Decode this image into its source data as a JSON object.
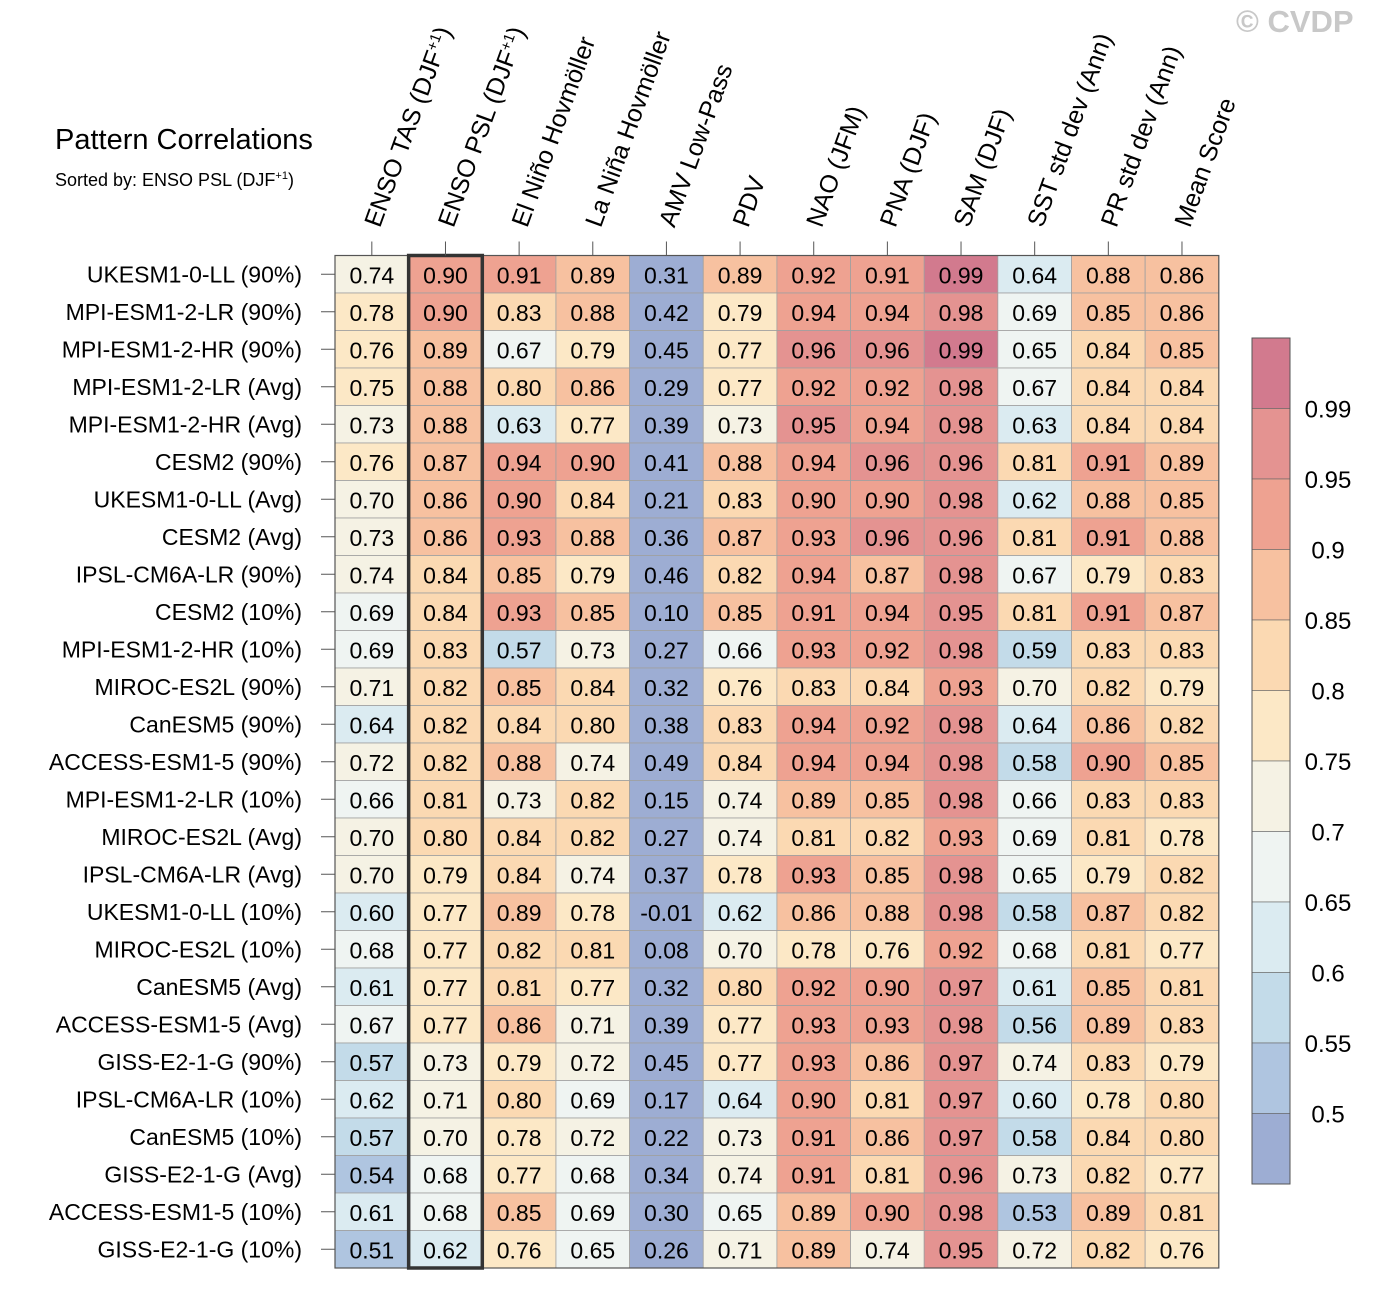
{
  "watermark": "© CVDP",
  "chart_data": {
    "type": "heatmap",
    "title": "Pattern Correlations",
    "subtitle_prefix": "Sorted by: ENSO PSL (DJF",
    "subtitle_sup": "+1",
    "subtitle_suffix": ")",
    "sorted_by_column": 1,
    "columns": [
      {
        "label": "ENSO TAS (DJF",
        "sup": "+1",
        "tail": ")"
      },
      {
        "label": "ENSO PSL (DJF",
        "sup": "+1",
        "tail": ")"
      },
      {
        "label": "El Niño Hovmöller",
        "sup": "",
        "tail": ""
      },
      {
        "label": "La Niña Hovmöller",
        "sup": "",
        "tail": ""
      },
      {
        "label": "AMV Low-Pass",
        "sup": "",
        "tail": ""
      },
      {
        "label": "PDV",
        "sup": "",
        "tail": ""
      },
      {
        "label": "NAO (JFM)",
        "sup": "",
        "tail": ""
      },
      {
        "label": "PNA (DJF)",
        "sup": "",
        "tail": ""
      },
      {
        "label": "SAM (DJF)",
        "sup": "",
        "tail": ""
      },
      {
        "label": "SST std dev (Ann)",
        "sup": "",
        "tail": ""
      },
      {
        "label": "PR std dev (Ann)",
        "sup": "",
        "tail": ""
      },
      {
        "label": "Mean Score",
        "sup": "",
        "tail": ""
      }
    ],
    "rows": [
      {
        "name": "UKESM1-0-LL (90%)",
        "values": [
          "0.74",
          "0.90",
          "0.91",
          "0.89",
          "0.31",
          "0.89",
          "0.92",
          "0.91",
          "0.99",
          "0.64",
          "0.88",
          "0.86"
        ]
      },
      {
        "name": "MPI-ESM1-2-LR (90%)",
        "values": [
          "0.78",
          "0.90",
          "0.83",
          "0.88",
          "0.42",
          "0.79",
          "0.94",
          "0.94",
          "0.98",
          "0.69",
          "0.85",
          "0.86"
        ]
      },
      {
        "name": "MPI-ESM1-2-HR (90%)",
        "values": [
          "0.76",
          "0.89",
          "0.67",
          "0.79",
          "0.45",
          "0.77",
          "0.96",
          "0.96",
          "0.99",
          "0.65",
          "0.84",
          "0.85"
        ]
      },
      {
        "name": "MPI-ESM1-2-LR (Avg)",
        "values": [
          "0.75",
          "0.88",
          "0.80",
          "0.86",
          "0.29",
          "0.77",
          "0.92",
          "0.92",
          "0.98",
          "0.67",
          "0.84",
          "0.84"
        ]
      },
      {
        "name": "MPI-ESM1-2-HR (Avg)",
        "values": [
          "0.73",
          "0.88",
          "0.63",
          "0.77",
          "0.39",
          "0.73",
          "0.95",
          "0.94",
          "0.98",
          "0.63",
          "0.84",
          "0.84"
        ]
      },
      {
        "name": "CESM2 (90%)",
        "values": [
          "0.76",
          "0.87",
          "0.94",
          "0.90",
          "0.41",
          "0.88",
          "0.94",
          "0.96",
          "0.96",
          "0.81",
          "0.91",
          "0.89"
        ]
      },
      {
        "name": "UKESM1-0-LL (Avg)",
        "values": [
          "0.70",
          "0.86",
          "0.90",
          "0.84",
          "0.21",
          "0.83",
          "0.90",
          "0.90",
          "0.98",
          "0.62",
          "0.88",
          "0.85"
        ]
      },
      {
        "name": "CESM2 (Avg)",
        "values": [
          "0.73",
          "0.86",
          "0.93",
          "0.88",
          "0.36",
          "0.87",
          "0.93",
          "0.96",
          "0.96",
          "0.81",
          "0.91",
          "0.88"
        ]
      },
      {
        "name": "IPSL-CM6A-LR (90%)",
        "values": [
          "0.74",
          "0.84",
          "0.85",
          "0.79",
          "0.46",
          "0.82",
          "0.94",
          "0.87",
          "0.98",
          "0.67",
          "0.79",
          "0.83"
        ]
      },
      {
        "name": "CESM2 (10%)",
        "values": [
          "0.69",
          "0.84",
          "0.93",
          "0.85",
          "0.10",
          "0.85",
          "0.91",
          "0.94",
          "0.95",
          "0.81",
          "0.91",
          "0.87"
        ]
      },
      {
        "name": "MPI-ESM1-2-HR (10%)",
        "values": [
          "0.69",
          "0.83",
          "0.57",
          "0.73",
          "0.27",
          "0.66",
          "0.93",
          "0.92",
          "0.98",
          "0.59",
          "0.83",
          "0.83"
        ]
      },
      {
        "name": "MIROC-ES2L (90%)",
        "values": [
          "0.71",
          "0.82",
          "0.85",
          "0.84",
          "0.32",
          "0.76",
          "0.83",
          "0.84",
          "0.93",
          "0.70",
          "0.82",
          "0.79"
        ]
      },
      {
        "name": "CanESM5 (90%)",
        "values": [
          "0.64",
          "0.82",
          "0.84",
          "0.80",
          "0.38",
          "0.83",
          "0.94",
          "0.92",
          "0.98",
          "0.64",
          "0.86",
          "0.82"
        ]
      },
      {
        "name": "ACCESS-ESM1-5 (90%)",
        "values": [
          "0.72",
          "0.82",
          "0.88",
          "0.74",
          "0.49",
          "0.84",
          "0.94",
          "0.94",
          "0.98",
          "0.58",
          "0.90",
          "0.85"
        ]
      },
      {
        "name": "MPI-ESM1-2-LR (10%)",
        "values": [
          "0.66",
          "0.81",
          "0.73",
          "0.82",
          "0.15",
          "0.74",
          "0.89",
          "0.85",
          "0.98",
          "0.66",
          "0.83",
          "0.83"
        ]
      },
      {
        "name": "MIROC-ES2L (Avg)",
        "values": [
          "0.70",
          "0.80",
          "0.84",
          "0.82",
          "0.27",
          "0.74",
          "0.81",
          "0.82",
          "0.93",
          "0.69",
          "0.81",
          "0.78"
        ]
      },
      {
        "name": "IPSL-CM6A-LR (Avg)",
        "values": [
          "0.70",
          "0.79",
          "0.84",
          "0.74",
          "0.37",
          "0.78",
          "0.93",
          "0.85",
          "0.98",
          "0.65",
          "0.79",
          "0.82"
        ]
      },
      {
        "name": "UKESM1-0-LL (10%)",
        "values": [
          "0.60",
          "0.77",
          "0.89",
          "0.78",
          "-0.01",
          "0.62",
          "0.86",
          "0.88",
          "0.98",
          "0.58",
          "0.87",
          "0.82"
        ]
      },
      {
        "name": "MIROC-ES2L (10%)",
        "values": [
          "0.68",
          "0.77",
          "0.82",
          "0.81",
          "0.08",
          "0.70",
          "0.78",
          "0.76",
          "0.92",
          "0.68",
          "0.81",
          "0.77"
        ]
      },
      {
        "name": "CanESM5 (Avg)",
        "values": [
          "0.61",
          "0.77",
          "0.81",
          "0.77",
          "0.32",
          "0.80",
          "0.92",
          "0.90",
          "0.97",
          "0.61",
          "0.85",
          "0.81"
        ]
      },
      {
        "name": "ACCESS-ESM1-5 (Avg)",
        "values": [
          "0.67",
          "0.77",
          "0.86",
          "0.71",
          "0.39",
          "0.77",
          "0.93",
          "0.93",
          "0.98",
          "0.56",
          "0.89",
          "0.83"
        ]
      },
      {
        "name": "GISS-E2-1-G (90%)",
        "values": [
          "0.57",
          "0.73",
          "0.79",
          "0.72",
          "0.45",
          "0.77",
          "0.93",
          "0.86",
          "0.97",
          "0.74",
          "0.83",
          "0.79"
        ]
      },
      {
        "name": "IPSL-CM6A-LR (10%)",
        "values": [
          "0.62",
          "0.71",
          "0.80",
          "0.69",
          "0.17",
          "0.64",
          "0.90",
          "0.81",
          "0.97",
          "0.60",
          "0.78",
          "0.80"
        ]
      },
      {
        "name": "CanESM5 (10%)",
        "values": [
          "0.57",
          "0.70",
          "0.78",
          "0.72",
          "0.22",
          "0.73",
          "0.91",
          "0.86",
          "0.97",
          "0.58",
          "0.84",
          "0.80"
        ]
      },
      {
        "name": "GISS-E2-1-G (Avg)",
        "values": [
          "0.54",
          "0.68",
          "0.77",
          "0.68",
          "0.34",
          "0.74",
          "0.91",
          "0.81",
          "0.96",
          "0.73",
          "0.82",
          "0.77"
        ]
      },
      {
        "name": "ACCESS-ESM1-5 (10%)",
        "values": [
          "0.61",
          "0.68",
          "0.85",
          "0.69",
          "0.30",
          "0.65",
          "0.89",
          "0.90",
          "0.98",
          "0.53",
          "0.89",
          "0.81"
        ]
      },
      {
        "name": "GISS-E2-1-G (10%)",
        "values": [
          "0.51",
          "0.62",
          "0.76",
          "0.65",
          "0.26",
          "0.71",
          "0.89",
          "0.74",
          "0.95",
          "0.72",
          "0.82",
          "0.76"
        ]
      }
    ],
    "colorbar": {
      "bounds": [
        0.5,
        0.55,
        0.6,
        0.65,
        0.7,
        0.75,
        0.8,
        0.85,
        0.9,
        0.95,
        0.99
      ],
      "tick_labels": [
        "0.99",
        "0.95",
        "0.9",
        "0.85",
        "0.8",
        "0.75",
        "0.7",
        "0.65",
        "0.6",
        "0.55",
        "0.5"
      ],
      "colors": [
        "#9dadd3",
        "#afc5e0",
        "#c3dbe9",
        "#dbebf1",
        "#eff4f2",
        "#f5f2e4",
        "#fce8c6",
        "#fbd9b2",
        "#f7c1a0",
        "#eea291",
        "#e49391",
        "#d27a8e"
      ]
    },
    "highlight_border_color": "#333333",
    "grid_color": "#a0a0a0"
  }
}
